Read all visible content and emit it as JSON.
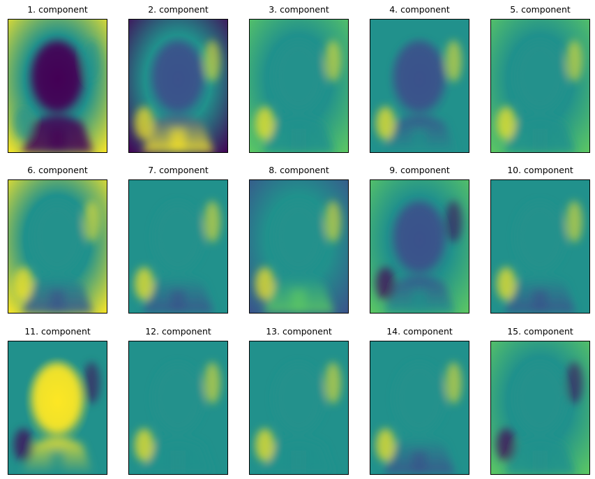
{
  "figure": {
    "colormap": "viridis",
    "colors": {
      "low": "#440154",
      "mid_low": "#3b528b",
      "mid": "#21918c",
      "mid_high": "#5ec962",
      "high": "#fde725"
    },
    "panels": [
      {
        "title": "1. component"
      },
      {
        "title": "2. component"
      },
      {
        "title": "3. component"
      },
      {
        "title": "4. component"
      },
      {
        "title": "5. component"
      },
      {
        "title": "6. component"
      },
      {
        "title": "7. component"
      },
      {
        "title": "8. component"
      },
      {
        "title": "9. component"
      },
      {
        "title": "10. component"
      },
      {
        "title": "11. component"
      },
      {
        "title": "12. component"
      },
      {
        "title": "13. component"
      },
      {
        "title": "14. component"
      },
      {
        "title": "15. component"
      }
    ]
  }
}
